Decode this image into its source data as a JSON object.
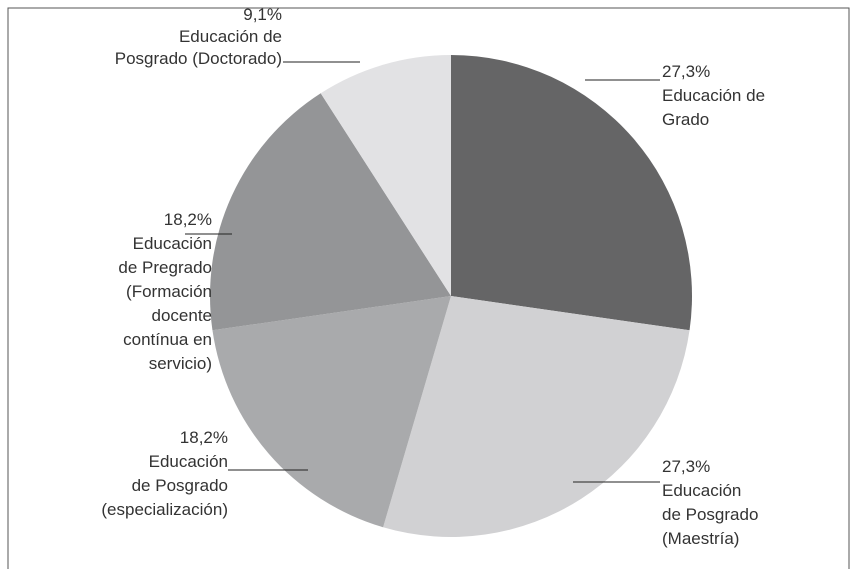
{
  "chart_data": {
    "type": "pie",
    "categories": [
      "Educación de\nGrado",
      "Educación\nde Posgrado\n(Maestría)",
      "Educación\nde Posgrado\n(especialización)",
      "Educación\nde Pregrado\n(Formación\ndocente\ncontínua en\nservicio)",
      "Educación de\nPosgrado (Doctorado)"
    ],
    "values": [
      27.3,
      27.3,
      18.2,
      18.2,
      9.1
    ],
    "value_labels": [
      "27,3%",
      "27,3%",
      "18,2%",
      "18,2%",
      "9,1%"
    ],
    "colors": [
      "#656566",
      "#d1d1d3",
      "#a9aaac",
      "#949597",
      "#e2e2e4"
    ]
  }
}
